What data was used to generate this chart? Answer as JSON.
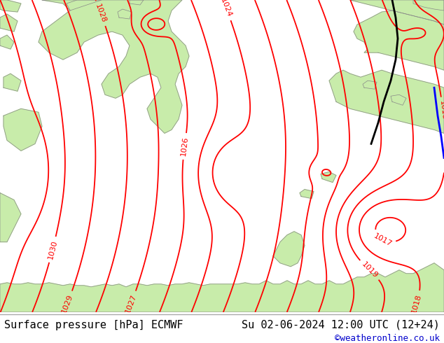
{
  "title_left": "Surface pressure [hPa] ECMWF",
  "title_right": "Su 02-06-2024 12:00 UTC (12+24)",
  "copyright": "©weatheronline.co.uk",
  "land_color": "#c8ecaa",
  "sea_color": "#dcdcdc",
  "isobar_color": "#ff0000",
  "coastline_color": "#888888",
  "blue_line_color": "#0000ff",
  "black_line_color": "#000000",
  "footer_bg": "#ffffff",
  "footer_text_color": "#000000",
  "copyright_color": "#0000cc",
  "font_size_footer": 11,
  "isobar_linewidth": 1.3,
  "figwidth": 6.34,
  "figheight": 4.9,
  "dpi": 100
}
